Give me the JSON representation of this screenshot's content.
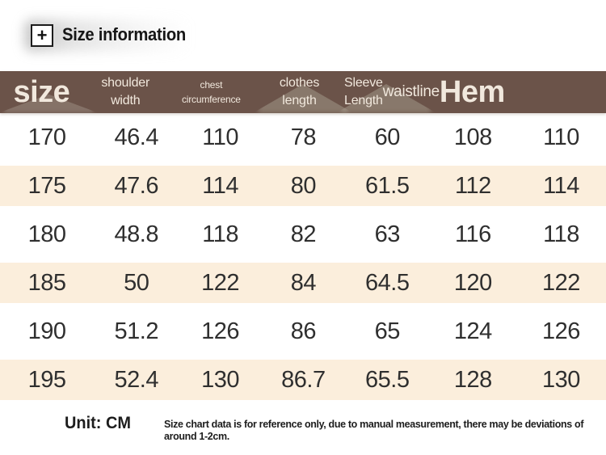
{
  "header": {
    "plus_glyph": "+",
    "title": "Size information"
  },
  "table": {
    "columns": [
      {
        "key": "size",
        "lines": [
          "size"
        ],
        "emphasis": "xl"
      },
      {
        "key": "shoulder-width",
        "lines": [
          "shoulder",
          "width"
        ],
        "emphasis": "md"
      },
      {
        "key": "chest-circumference",
        "lines": [
          "chest",
          "circumference"
        ],
        "emphasis": "sm"
      },
      {
        "key": "clothes-length",
        "lines": [
          "clothes",
          "length"
        ],
        "emphasis": "md"
      },
      {
        "key": "sleeve-length",
        "lines": [
          "Sleeve",
          "Length"
        ],
        "emphasis": "md"
      },
      {
        "key": "waistline",
        "lines": [
          "waistline"
        ],
        "emphasis": "lg"
      },
      {
        "key": "hem",
        "lines": [
          "Hem"
        ],
        "emphasis": "xl"
      }
    ],
    "rows": [
      [
        "170",
        "46.4",
        "110",
        "78",
        "60",
        "108",
        "110"
      ],
      [
        "175",
        "47.6",
        "114",
        "80",
        "61.5",
        "112",
        "114"
      ],
      [
        "180",
        "48.8",
        "118",
        "82",
        "63",
        "116",
        "118"
      ],
      [
        "185",
        "50",
        "122",
        "84",
        "64.5",
        "120",
        "122"
      ],
      [
        "190",
        "51.2",
        "126",
        "86",
        "65",
        "124",
        "126"
      ],
      [
        "195",
        "52.4",
        "130",
        "86.7",
        "65.5",
        "128",
        "130"
      ]
    ]
  },
  "footer": {
    "unit": "Unit: CM",
    "disclaimer": "Size chart data is for reference only, due to manual measurement, there may be deviations of around 1-2cm."
  },
  "colors": {
    "header_bg": "#6b5349",
    "header_text": "#f1e8dd",
    "row_alt_bg": "#fbeedc",
    "body_text": "#2f2f2f"
  }
}
